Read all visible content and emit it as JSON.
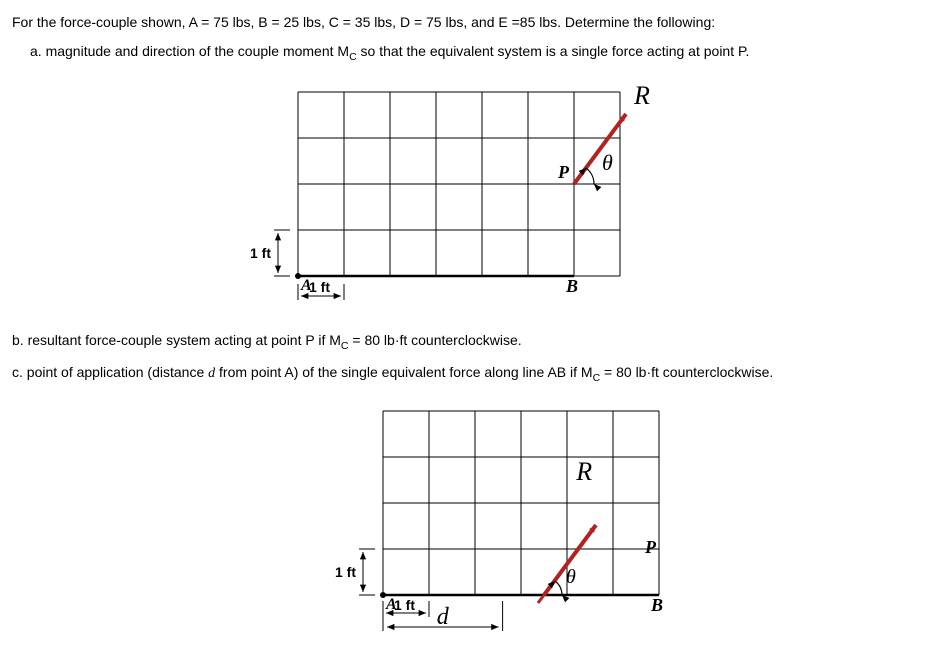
{
  "intro": "For the force-couple shown, A = 75 lbs, B = 25 lbs, C = 35 lbs, D = 75 lbs, and E =85 lbs. Determine the following:",
  "part_a": "a. magnitude and direction of the couple moment M",
  "part_a_sub": "C",
  "part_a_tail": " so that the equivalent system is a single force acting at point P.",
  "part_b": "b. resultant force-couple system acting at point P if M",
  "part_b_sub": "C",
  "part_b_tail": " = 80 lb·ft counterclockwise.",
  "part_c": "c. point of application (distance ",
  "part_c_d": "d",
  "part_c_mid": " from point A) of the single equivalent force along line AB if M",
  "part_c_sub": "C",
  "part_c_tail": " = 80 lb·ft counterclockwise.",
  "fig1": {
    "grid_cols": 7,
    "grid_rows": 4,
    "cell": 46,
    "labels": {
      "A": "A",
      "B": "B",
      "P": "P",
      "R": "R",
      "theta": "θ",
      "vdim": "1 ft",
      "hdim": "1 ft"
    },
    "arrow_color": "#b22222",
    "grid_color": "#000000",
    "text_color": "#000000"
  },
  "fig2": {
    "grid_cols": 6,
    "grid_rows": 4,
    "cell": 46,
    "labels": {
      "A": "A",
      "B": "B",
      "P": "P",
      "R": "R",
      "theta": "θ",
      "d": "d",
      "vdim": "1 ft",
      "hdim": "1 ft"
    },
    "arrow_color": "#b22222",
    "grid_color": "#000000",
    "text_color": "#000000"
  }
}
